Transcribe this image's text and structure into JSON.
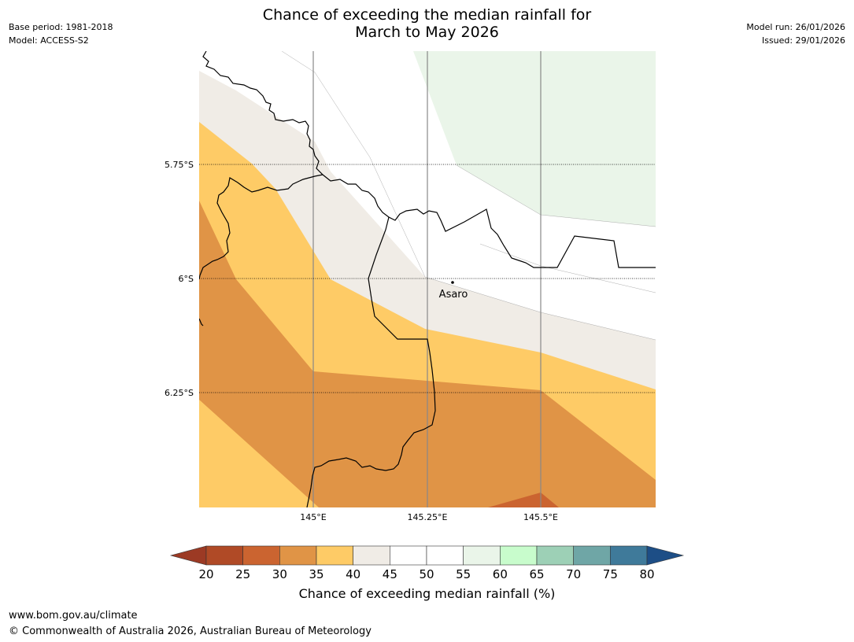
{
  "title": {
    "line1": "Chance of exceeding the median rainfall for",
    "line2": "March to May 2026"
  },
  "meta_left": {
    "base_period": "Base period: 1981-2018",
    "model": "Model: ACCESS-S2"
  },
  "meta_right": {
    "model_run": "Model run: 26/01/2026",
    "issued": "Issued: 29/01/2026"
  },
  "map": {
    "lat_labels": [
      "5.75°S",
      "6°S",
      "6.25°S"
    ],
    "lon_labels": [
      "145°E",
      "145.25°E",
      "145.5°E"
    ],
    "place": {
      "name": "Asaro",
      "lat": -5.99,
      "lon": 145.3
    }
  },
  "colorbar": {
    "title": "Chance of exceeding median rainfall (%)",
    "ticks": [
      "20",
      "25",
      "30",
      "35",
      "40",
      "45",
      "50",
      "55",
      "60",
      "65",
      "70",
      "75",
      "80"
    ],
    "under_color": "#9c3a24",
    "over_color": "#1d4e86",
    "colors": [
      "#b04a26",
      "#cb6430",
      "#e09446",
      "#fecb66",
      "#f0ece6",
      "#ffffff",
      "#ffffff",
      "#eaf5e9",
      "#c8fccc",
      "#9dd0b6",
      "#6fa6a6",
      "#3f7a9a"
    ]
  },
  "footer": {
    "url": "www.bom.gov.au/climate",
    "copyright": "© Commonwealth of Australia 2026, Australian Bureau of Meteorology"
  }
}
